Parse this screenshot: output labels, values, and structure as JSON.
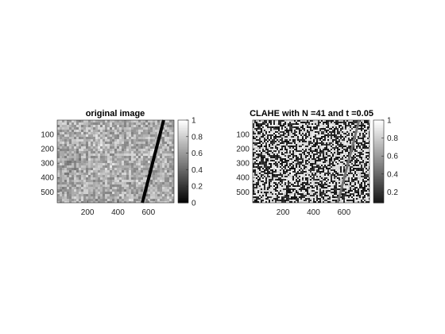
{
  "chart_data": [
    {
      "type": "heatmap",
      "title": "original image",
      "colormap": "gray",
      "xlim": [
        1,
        768
      ],
      "ylim": [
        1,
        576
      ],
      "xticks": [
        200,
        400,
        600
      ],
      "yticks": [
        100,
        200,
        300,
        400,
        500
      ],
      "colorbar": {
        "range": [
          0,
          1
        ],
        "ticks": [
          0,
          0.2,
          0.4,
          0.6,
          0.8,
          1
        ],
        "tick_labels": [
          "0",
          "0.2",
          "0.4",
          "0.6",
          "0.8",
          "1"
        ]
      },
      "line_feature": {
        "x_top": 700,
        "x_bottom": 560,
        "intensity": 0.0
      }
    },
    {
      "type": "heatmap",
      "title": "CLAHE with N =41 and t =0.05",
      "colormap": "gray",
      "xlim": [
        1,
        768
      ],
      "ylim": [
        1,
        576
      ],
      "xticks": [
        200,
        400,
        600
      ],
      "yticks": [
        100,
        200,
        300,
        400,
        500
      ],
      "colorbar": {
        "range": [
          0.08,
          1
        ],
        "ticks": [
          0.2,
          0.4,
          0.6,
          0.8,
          1
        ],
        "tick_labels": [
          "0.2",
          "0.4",
          "0.6",
          "0.8",
          "1"
        ]
      },
      "line_feature": {
        "x_top": 700,
        "x_bottom": 560,
        "intensity": 0.45
      }
    }
  ]
}
